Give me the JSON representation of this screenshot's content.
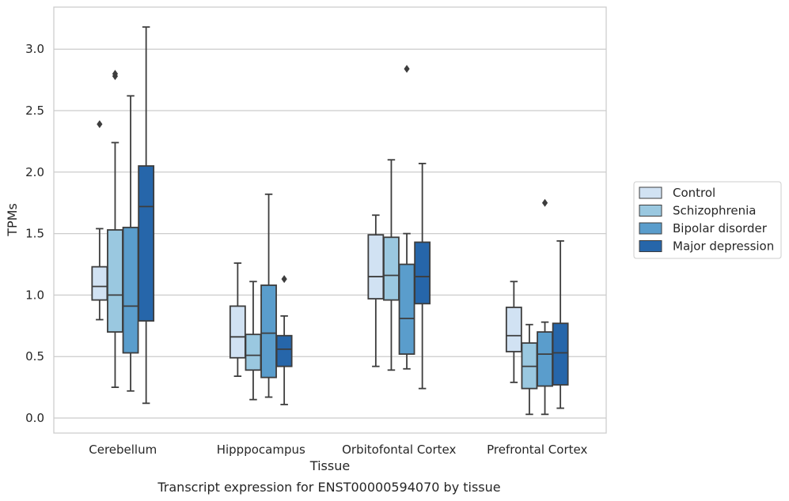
{
  "chart_data": {
    "type": "box",
    "xlabel": "Tissue",
    "ylabel": "TPMs",
    "caption": "Transcript expression for ENST00000594070 by tissue",
    "ylim": [
      -0.12,
      3.35
    ],
    "yticks": [
      0.0,
      0.5,
      1.0,
      1.5,
      2.0,
      2.5,
      3.0
    ],
    "grid": "horizontal",
    "legend_position": "right",
    "categories": [
      "Cerebellum",
      "Hipppocampus",
      "Orbitofontal Cortex",
      "Prefrontal Cortex"
    ],
    "series": [
      {
        "name": "Control",
        "color": "#d1e2f3",
        "boxes": [
          {
            "whislo": 0.8,
            "q1": 0.96,
            "median": 1.07,
            "q3": 1.23,
            "whishi": 1.54,
            "fliers": [
              2.39
            ]
          },
          {
            "whislo": 0.34,
            "q1": 0.49,
            "median": 0.66,
            "q3": 0.91,
            "whishi": 1.26,
            "fliers": []
          },
          {
            "whislo": 0.42,
            "q1": 0.97,
            "median": 1.15,
            "q3": 1.49,
            "whishi": 1.65,
            "fliers": []
          },
          {
            "whislo": 0.29,
            "q1": 0.54,
            "median": 0.67,
            "q3": 0.9,
            "whishi": 1.11,
            "fliers": []
          }
        ]
      },
      {
        "name": "Schizophrenia",
        "color": "#9ac8e0",
        "boxes": [
          {
            "whislo": 0.25,
            "q1": 0.7,
            "median": 1.0,
            "q3": 1.53,
            "whishi": 2.24,
            "fliers": [
              2.78,
              2.8
            ]
          },
          {
            "whislo": 0.15,
            "q1": 0.39,
            "median": 0.51,
            "q3": 0.68,
            "whishi": 1.11,
            "fliers": []
          },
          {
            "whislo": 0.39,
            "q1": 0.96,
            "median": 1.16,
            "q3": 1.47,
            "whishi": 2.1,
            "fliers": []
          },
          {
            "whislo": 0.03,
            "q1": 0.24,
            "median": 0.42,
            "q3": 0.61,
            "whishi": 0.76,
            "fliers": []
          }
        ]
      },
      {
        "name": "Bipolar disorder",
        "color": "#5a9dcc",
        "boxes": [
          {
            "whislo": 0.22,
            "q1": 0.53,
            "median": 0.91,
            "q3": 1.55,
            "whishi": 2.62,
            "fliers": []
          },
          {
            "whislo": 0.17,
            "q1": 0.33,
            "median": 0.69,
            "q3": 1.08,
            "whishi": 1.82,
            "fliers": []
          },
          {
            "whislo": 0.4,
            "q1": 0.52,
            "median": 0.81,
            "q3": 1.25,
            "whishi": 1.5,
            "fliers": [
              2.84
            ]
          },
          {
            "whislo": 0.03,
            "q1": 0.26,
            "median": 0.52,
            "q3": 0.7,
            "whishi": 0.78,
            "fliers": [
              1.75
            ]
          }
        ]
      },
      {
        "name": "Major depression",
        "color": "#2666aa",
        "boxes": [
          {
            "whislo": 0.12,
            "q1": 0.79,
            "median": 1.72,
            "q3": 2.05,
            "whishi": 3.18,
            "fliers": []
          },
          {
            "whislo": 0.11,
            "q1": 0.42,
            "median": 0.56,
            "q3": 0.67,
            "whishi": 0.83,
            "fliers": [
              1.13
            ]
          },
          {
            "whislo": 0.24,
            "q1": 0.93,
            "median": 1.15,
            "q3": 1.43,
            "whishi": 2.07,
            "fliers": []
          },
          {
            "whislo": 0.08,
            "q1": 0.27,
            "median": 0.53,
            "q3": 0.77,
            "whishi": 1.44,
            "fliers": []
          }
        ]
      }
    ]
  }
}
